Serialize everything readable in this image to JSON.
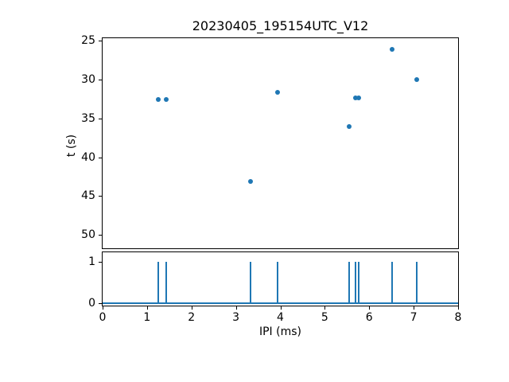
{
  "figure": {
    "title": "20230405_195154UTC_V12",
    "background": "#ffffff",
    "accent_color": "#1f77b4"
  },
  "chart_data": [
    {
      "type": "scatter",
      "title": "20230405_195154UTC_V12",
      "xlabel": "",
      "ylabel": "t (s)",
      "x": [
        1.26,
        1.44,
        3.32,
        3.93,
        5.54,
        5.7,
        5.76,
        6.51,
        7.07
      ],
      "y": [
        32.6,
        32.6,
        43.1,
        31.6,
        36.0,
        32.3,
        32.3,
        26.1,
        30.0
      ],
      "xlim": [
        0,
        8
      ],
      "ylim": [
        51.73,
        24.66
      ],
      "y_axis_inverted": true,
      "yticks": [
        25,
        30,
        35,
        40,
        45,
        50
      ],
      "marker_color": "#1f77b4",
      "grid": false,
      "legend": null
    },
    {
      "type": "line",
      "title": "",
      "xlabel": "IPI (ms)",
      "ylabel": "",
      "spike_x": [
        1.26,
        1.44,
        3.32,
        3.93,
        5.54,
        5.7,
        5.76,
        6.51,
        7.07
      ],
      "spike_height": 1,
      "baseline_value": 0,
      "xlim": [
        0,
        8
      ],
      "ylim": [
        -0.05,
        1.22
      ],
      "xticks": [
        0,
        1,
        2,
        3,
        4,
        5,
        6,
        7,
        8
      ],
      "yticks": [
        0,
        1
      ],
      "line_color": "#1f77b4",
      "grid": false,
      "legend": null
    }
  ]
}
